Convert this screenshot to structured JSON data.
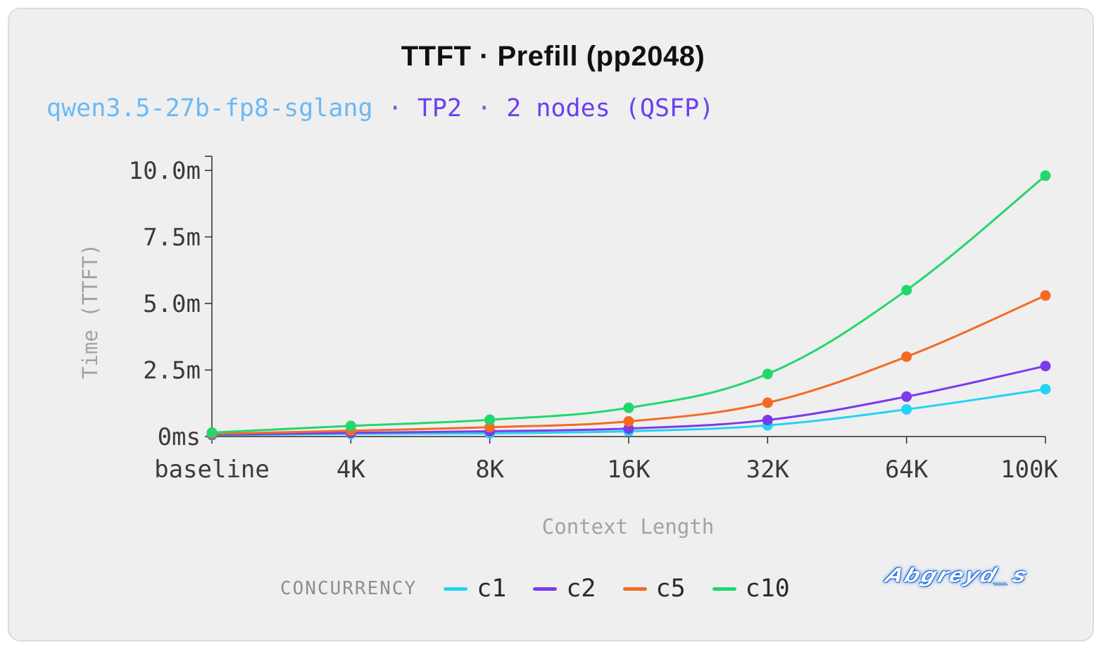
{
  "title": "TTFT · Prefill (pp2048)",
  "subtitle": {
    "model": "qwen3.5-27b-fp8-sglang",
    "sep1": " · ",
    "tp": "TP2",
    "sep2": " · ",
    "nodes": "2 nodes (QSFP)"
  },
  "legend": {
    "title": "CONCURRENCY"
  },
  "watermark": "Abgreyd_s",
  "chart_data": {
    "type": "line",
    "title": "TTFT · Prefill (pp2048)",
    "xlabel": "Context Length",
    "ylabel": "Time (TTFT)",
    "categories": [
      "baseline",
      "4K",
      "8K",
      "16K",
      "32K",
      "64K",
      "100K"
    ],
    "yticks": [
      {
        "value": 0,
        "label": "0ms"
      },
      {
        "value": 2.5,
        "label": "2.5m"
      },
      {
        "value": 5.0,
        "label": "5.0m"
      },
      {
        "value": 7.5,
        "label": "7.5m"
      },
      {
        "value": 10.0,
        "label": "10.0m"
      }
    ],
    "ylim": [
      0,
      10.5
    ],
    "grid": false,
    "legend_position": "bottom",
    "series": [
      {
        "name": "c1",
        "color": "#22d3f5",
        "values": [
          0.05,
          0.1,
          0.12,
          0.2,
          0.42,
          1.02,
          1.78
        ]
      },
      {
        "name": "c2",
        "color": "#7c3aed",
        "values": [
          0.07,
          0.14,
          0.2,
          0.3,
          0.62,
          1.5,
          2.65
        ]
      },
      {
        "name": "c5",
        "color": "#f56a22",
        "values": [
          0.1,
          0.22,
          0.35,
          0.57,
          1.27,
          3.0,
          5.3
        ]
      },
      {
        "name": "c10",
        "color": "#22d76d",
        "values": [
          0.15,
          0.4,
          0.63,
          1.08,
          2.35,
          5.5,
          9.8
        ]
      }
    ]
  }
}
